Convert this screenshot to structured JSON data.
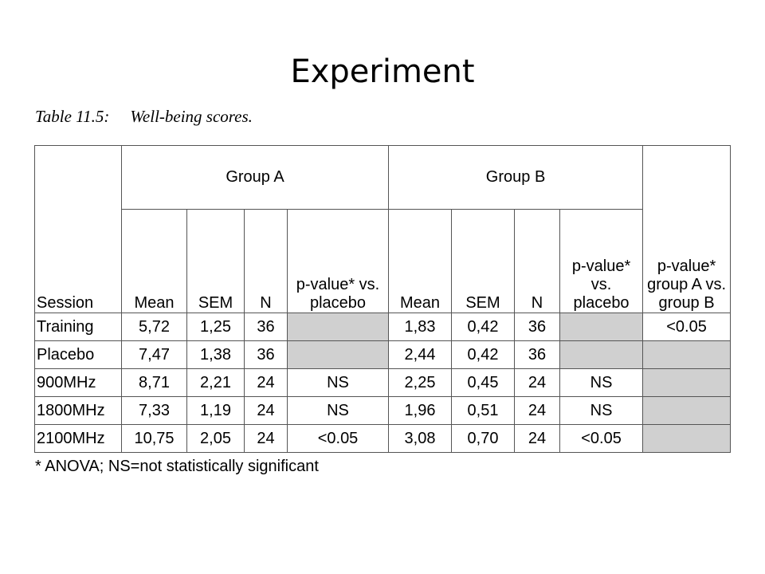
{
  "slide": {
    "title": "Experiment"
  },
  "table": {
    "caption_label": "Table 11.5:",
    "caption_text": "Well-being scores.",
    "session_header": "Session",
    "group_a_header": "Group A",
    "group_b_header": "Group B",
    "p_ab_header": "p-value* group A vs. group B",
    "subheaders": {
      "mean": "Mean",
      "sem": "SEM",
      "n": "N",
      "p_a": "p-value* vs. placebo",
      "p_b": "p-value* vs. placebo"
    },
    "rows": [
      {
        "session": "Training",
        "a_mean": "5,72",
        "a_sem": "1,25",
        "a_n": "36",
        "a_p": "",
        "b_mean": "1,83",
        "b_sem": "0,42",
        "b_n": "36",
        "b_p": "",
        "p_ab": "<0.05"
      },
      {
        "session": "Placebo",
        "a_mean": "7,47",
        "a_sem": "1,38",
        "a_n": "36",
        "a_p": "",
        "b_mean": "2,44",
        "b_sem": "0,42",
        "b_n": "36",
        "b_p": "",
        "p_ab": ""
      },
      {
        "session": "900MHz",
        "a_mean": "8,71",
        "a_sem": "2,21",
        "a_n": "24",
        "a_p": "NS",
        "b_mean": "2,25",
        "b_sem": "0,45",
        "b_n": "24",
        "b_p": "NS",
        "p_ab": ""
      },
      {
        "session": "1800MHz",
        "a_mean": "7,33",
        "a_sem": "1,19",
        "a_n": "24",
        "a_p": "NS",
        "b_mean": "1,96",
        "b_sem": "0,51",
        "b_n": "24",
        "b_p": "NS",
        "p_ab": ""
      },
      {
        "session": "2100MHz",
        "a_mean": "10,75",
        "a_sem": "2,05",
        "a_n": "24",
        "a_p": "<0.05",
        "b_mean": "3,08",
        "b_sem": "0,70",
        "b_n": "24",
        "b_p": "<0.05",
        "p_ab": ""
      }
    ],
    "footnote": "* ANOVA; NS=not statistically significant",
    "shaded_cell_color": "#d0d0d0"
  }
}
